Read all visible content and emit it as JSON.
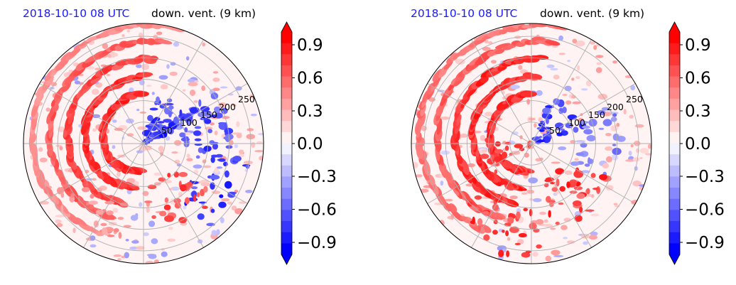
{
  "chart_data": [
    {
      "type": "heatmap",
      "projection": "polar",
      "title_left": "2018-10-10 08 UTC",
      "title_right": "down. vent. (9 km)",
      "ring_labels": [
        "50",
        "100",
        "150",
        "200",
        "250"
      ],
      "ring_values_km": [
        50,
        100,
        150,
        200,
        250
      ],
      "r_max_km": 280,
      "colorbar": {
        "ticks": [
          "0.9",
          "0.6",
          "0.3",
          "0.0",
          "−0.3",
          "−0.6",
          "−0.9"
        ],
        "range": [
          -1.0,
          1.0
        ],
        "colormap": "bwr",
        "extend": "both"
      },
      "colors": {
        "positive": "#ff0000",
        "negative": "#0000ff",
        "zero": "#ffffff"
      },
      "grid": true,
      "features": [
        {
          "type": "spiral_band",
          "sign": 1,
          "arm": 0,
          "level": 0.9
        },
        {
          "type": "spiral_band",
          "sign": 1,
          "arm": 1,
          "level": 0.9
        },
        {
          "type": "spiral_band",
          "sign": 1,
          "arm": 2,
          "level": 0.8
        },
        {
          "type": "spiral_band",
          "sign": 1,
          "arm": 3,
          "level": 0.7
        },
        {
          "type": "spiral_band",
          "sign": 1,
          "arm": 4,
          "level": 0.5
        },
        {
          "type": "blob_region",
          "sign": -1,
          "az_deg": 40,
          "r_km": 60,
          "count": 55,
          "level": 0.9
        },
        {
          "type": "blob_region",
          "sign": -1,
          "az_deg": 80,
          "r_km": 150,
          "count": 45,
          "level": 0.8
        },
        {
          "type": "blob_region",
          "sign": -1,
          "az_deg": 120,
          "r_km": 200,
          "count": 30,
          "level": 0.9
        },
        {
          "type": "blob_region",
          "sign": 1,
          "az_deg": 150,
          "r_km": 150,
          "count": 25,
          "level": 0.8
        },
        {
          "type": "blob_region",
          "sign": 1,
          "az_deg": 220,
          "r_km": 200,
          "count": 30,
          "level": 0.5
        }
      ]
    },
    {
      "type": "heatmap",
      "projection": "polar",
      "title_left": "2018-10-10 08 UTC",
      "title_right": "down. vent. (9 km)",
      "ring_labels": [
        "50",
        "100",
        "150",
        "200",
        "250"
      ],
      "ring_values_km": [
        50,
        100,
        150,
        200,
        250
      ],
      "r_max_km": 280,
      "colorbar": {
        "ticks": [
          "0.9",
          "0.6",
          "0.3",
          "0.0",
          "−0.3",
          "−0.6",
          "−0.9"
        ],
        "range": [
          -1.0,
          1.0
        ],
        "colormap": "bwr",
        "extend": "both"
      },
      "colors": {
        "positive": "#ff0000",
        "negative": "#0000ff",
        "zero": "#ffffff"
      },
      "grid": true,
      "features": [
        {
          "type": "spiral_band",
          "sign": 1,
          "arm": 0,
          "level": 0.9
        },
        {
          "type": "spiral_band",
          "sign": 1,
          "arm": 1,
          "level": 0.9
        },
        {
          "type": "spiral_band",
          "sign": 1,
          "arm": 2,
          "level": 0.9
        },
        {
          "type": "spiral_band",
          "sign": 1,
          "arm": 3,
          "level": 0.7
        },
        {
          "type": "spiral_band",
          "sign": 1,
          "arm": 4,
          "level": 0.6
        },
        {
          "type": "blob_region",
          "sign": -1,
          "az_deg": 50,
          "r_km": 70,
          "count": 35,
          "level": 0.9
        },
        {
          "type": "blob_region",
          "sign": -1,
          "az_deg": 90,
          "r_km": 160,
          "count": 25,
          "level": 0.6
        },
        {
          "type": "blob_region",
          "sign": 1,
          "az_deg": 140,
          "r_km": 150,
          "count": 35,
          "level": 0.9
        },
        {
          "type": "blob_region",
          "sign": 1,
          "az_deg": 200,
          "r_km": 210,
          "count": 35,
          "level": 0.9
        },
        {
          "type": "blob_region",
          "sign": 1,
          "az_deg": 250,
          "r_km": 60,
          "count": 20,
          "level": 0.9
        }
      ]
    }
  ]
}
